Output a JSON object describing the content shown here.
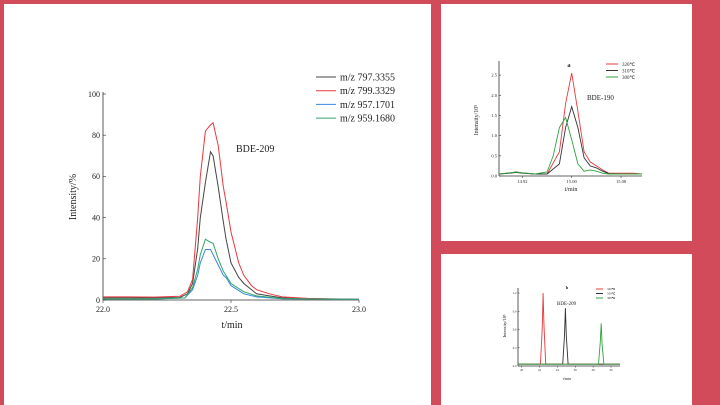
{
  "background_color": "#d24b5a",
  "chart_data": [
    {
      "type": "line",
      "title": "",
      "annotation": "BDE-209",
      "xlabel": "t/min",
      "ylabel": "Intensity/%",
      "xlim": [
        22.0,
        23.0
      ],
      "ylim": [
        0,
        100
      ],
      "xticks": [
        "22.0",
        "22.5",
        "23.0"
      ],
      "yticks": [
        "0",
        "20",
        "40",
        "60",
        "80",
        "100"
      ],
      "legend": "top-right",
      "grid": false,
      "series": [
        {
          "name": "m/z 797.3355",
          "color": "#444444",
          "x": [
            22.0,
            22.1,
            22.2,
            22.3,
            22.33,
            22.35,
            22.37,
            22.38,
            22.4,
            22.42,
            22.43,
            22.45,
            22.47,
            22.48,
            22.5,
            22.53,
            22.55,
            22.6,
            22.65,
            22.7,
            22.8,
            23.0
          ],
          "y": [
            1,
            1,
            1,
            1.2,
            3,
            8,
            25,
            40,
            57,
            72,
            70,
            55,
            38,
            30,
            18,
            11,
            8,
            3,
            2,
            1,
            0.6,
            0.3
          ]
        },
        {
          "name": "m/z 799.3329",
          "color": "#e8383d",
          "x": [
            22.0,
            22.1,
            22.2,
            22.3,
            22.33,
            22.35,
            22.37,
            22.38,
            22.4,
            22.42,
            22.43,
            22.45,
            22.47,
            22.48,
            22.5,
            22.53,
            22.55,
            22.58,
            22.6,
            22.65,
            22.7,
            22.8,
            23.0
          ],
          "y": [
            1.5,
            1.5,
            1.4,
            1.8,
            4,
            10,
            40,
            60,
            82,
            85,
            86,
            75,
            55,
            48,
            33,
            18,
            12,
            7,
            5,
            3,
            1.5,
            0.8,
            0.3
          ]
        },
        {
          "name": "m/z 957.1701",
          "color": "#3a87e0",
          "x": [
            22.0,
            22.2,
            22.32,
            22.35,
            22.37,
            22.38,
            22.4,
            22.42,
            22.43,
            22.45,
            22.47,
            22.48,
            22.5,
            22.55,
            22.6,
            22.7,
            23.0
          ],
          "y": [
            0.5,
            0.5,
            1,
            5,
            12,
            18,
            24.5,
            24.5,
            22,
            17,
            12,
            11,
            7,
            3,
            1.5,
            0.6,
            0.3
          ]
        },
        {
          "name": "m/z 959.1680",
          "color": "#2fa66a",
          "x": [
            22.0,
            22.2,
            22.32,
            22.35,
            22.37,
            22.38,
            22.4,
            22.42,
            22.43,
            22.45,
            22.47,
            22.48,
            22.5,
            22.55,
            22.6,
            22.7,
            23.0
          ],
          "y": [
            0.5,
            0.5,
            1,
            6,
            15,
            22,
            29.5,
            28,
            27.5,
            20,
            14,
            12,
            8,
            4,
            2,
            0.7,
            0.3
          ]
        }
      ]
    },
    {
      "type": "line",
      "title": "a",
      "annotation": "BDE-190",
      "xlabel": "t/min",
      "ylabel": "Intensity/10⁵",
      "xlim": [
        14.882,
        15.114
      ],
      "ylim": [
        0,
        2.8
      ],
      "xticks": [
        "14.92",
        "15.00",
        "15.08"
      ],
      "yticks": [
        "0.0",
        "0.5",
        "1.0",
        "1.5",
        "2.0",
        "2.5"
      ],
      "legend": "top-right",
      "grid": false,
      "series": [
        {
          "name": "320℃",
          "color": "#e8383d",
          "x": [
            14.882,
            14.9,
            14.91,
            14.92,
            14.94,
            14.96,
            14.98,
            14.99,
            15.0,
            15.01,
            15.02,
            15.03,
            15.04,
            15.05,
            15.06,
            15.08,
            15.1,
            15.114
          ],
          "y": [
            0.05,
            0.08,
            0.1,
            0.08,
            0.05,
            0.05,
            0.6,
            1.8,
            2.55,
            1.6,
            0.6,
            0.35,
            0.25,
            0.15,
            0.07,
            0.07,
            0.07,
            0.05
          ]
        },
        {
          "name": "310℃",
          "color": "#333333",
          "x": [
            14.882,
            14.9,
            14.91,
            14.92,
            14.94,
            14.96,
            14.98,
            14.99,
            15.0,
            15.01,
            15.02,
            15.03,
            15.04,
            15.05,
            15.06,
            15.08,
            15.1,
            15.114
          ],
          "y": [
            0.05,
            0.07,
            0.09,
            0.07,
            0.05,
            0.05,
            0.3,
            1.2,
            1.72,
            1.2,
            0.45,
            0.25,
            0.2,
            0.12,
            0.06,
            0.05,
            0.05,
            0.05
          ]
        },
        {
          "name": "300℃",
          "color": "#2fa33f",
          "x": [
            14.882,
            14.9,
            14.91,
            14.92,
            14.94,
            14.96,
            14.97,
            14.98,
            14.99,
            15.0,
            15.01,
            15.02,
            15.03,
            15.04,
            15.05,
            15.06,
            15.08,
            15.1,
            15.114
          ],
          "y": [
            0.05,
            0.08,
            0.1,
            0.08,
            0.05,
            0.1,
            0.5,
            1.2,
            1.45,
            0.9,
            0.3,
            0.12,
            0.15,
            0.12,
            0.07,
            0.05,
            0.05,
            0.05,
            0.05
          ]
        }
      ]
    },
    {
      "type": "line",
      "title": "b",
      "annotation": "BDE-209",
      "xlabel": "t/min",
      "ylabel": "Intensity/10⁵",
      "xlim": [
        19.6,
        31
      ],
      "ylim": [
        0,
        1.25
      ],
      "xticks": [
        "20",
        "22",
        "24",
        "26",
        "28",
        "30"
      ],
      "yticks": [
        "0.0",
        "0.3",
        "0.6",
        "0.9",
        "1.2"
      ],
      "legend": "top-right",
      "grid": false,
      "series": [
        {
          "name": "320℃",
          "color": "#e8383d",
          "x": [
            19.6,
            22.1,
            22.3,
            22.4,
            22.5,
            22.7,
            31
          ],
          "y": [
            0.03,
            0.03,
            0.6,
            1.2,
            0.7,
            0.03,
            0.03
          ]
        },
        {
          "name": "310℃",
          "color": "#333333",
          "x": [
            19.6,
            24.6,
            24.8,
            24.9,
            25.0,
            25.2,
            31
          ],
          "y": [
            0.03,
            0.03,
            0.5,
            0.95,
            0.5,
            0.03,
            0.03
          ]
        },
        {
          "name": "300℃",
          "color": "#2fa33f",
          "x": [
            19.6,
            28.6,
            28.8,
            28.9,
            29.0,
            29.2,
            31
          ],
          "y": [
            0.03,
            0.03,
            0.4,
            0.7,
            0.35,
            0.03,
            0.03
          ]
        }
      ]
    }
  ]
}
